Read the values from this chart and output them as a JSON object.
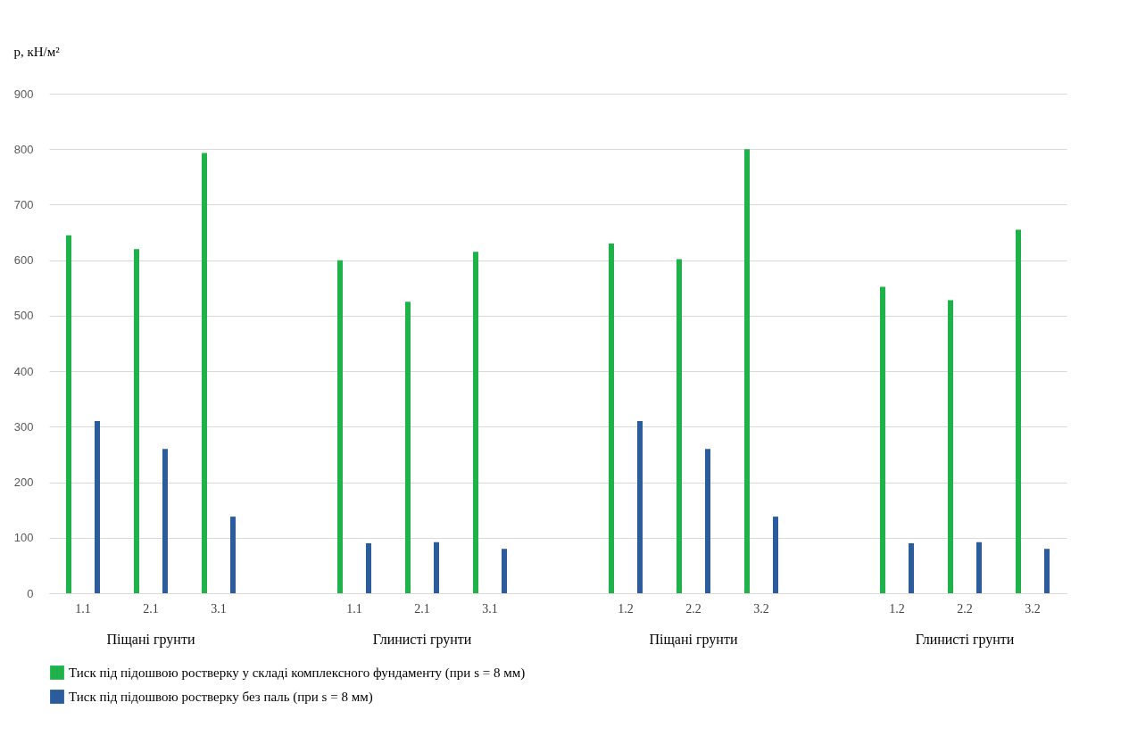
{
  "chart_data": {
    "type": "bar",
    "ylabel": "p, кН/м²",
    "categories": [
      "1.1",
      "2.1",
      "3.1",
      null,
      "1.1",
      "2.1",
      "3.1",
      null,
      "1.2",
      "2.2",
      "3.2",
      null,
      "1.2",
      "2.2",
      "3.2"
    ],
    "series": [
      {
        "name": "Тиск під підошвою ростверку у складі комплексного фундаменту (при s = 8 мм)",
        "color": "#1fb24a",
        "values": [
          645,
          620,
          793,
          null,
          600,
          525,
          615,
          null,
          630,
          602,
          800,
          null,
          552,
          528,
          655
        ]
      },
      {
        "name": "Тиск під підошвою ростверку без паль (при s = 8 мм)",
        "color": "#2b5d9c",
        "values": [
          310,
          260,
          138,
          null,
          90,
          92,
          80,
          null,
          310,
          260,
          138,
          null,
          90,
          92,
          80
        ]
      }
    ],
    "annotations": [
      "Піщані грунти",
      "Глинисті грунти",
      "Піщані грунти",
      "Глинисті грунти"
    ],
    "ylim": [
      0,
      900
    ],
    "yticks": [
      0,
      100,
      200,
      300,
      400,
      500,
      600,
      700,
      800,
      900
    ],
    "grid": "y",
    "legend": "bottom left"
  }
}
